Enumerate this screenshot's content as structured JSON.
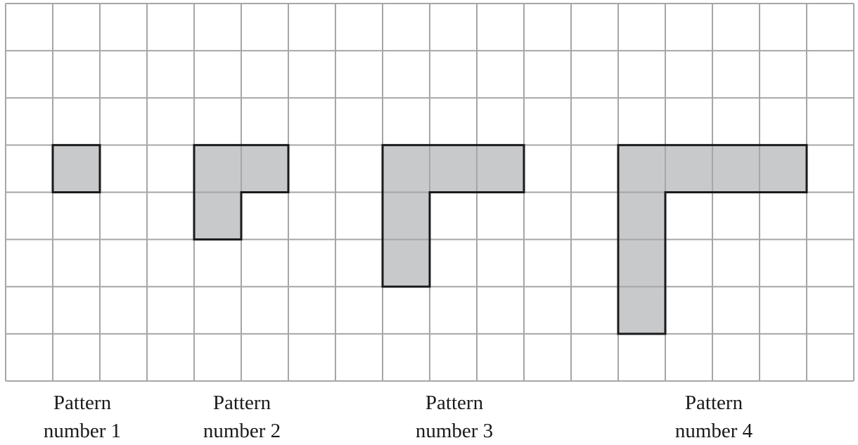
{
  "grid": {
    "columns": 18,
    "rows": 8,
    "line_color": "#a6a6a6",
    "fill_color": "#c8c9cb",
    "outline_color": "#1a1a1a"
  },
  "patterns": [
    {
      "id": "1",
      "caption_line1": "Pattern",
      "caption_line2": "number 1",
      "cells": [
        [
          1,
          3
        ]
      ]
    },
    {
      "id": "2",
      "caption_line1": "Pattern",
      "caption_line2": "number 2",
      "cells": [
        [
          4,
          3
        ],
        [
          5,
          3
        ],
        [
          4,
          4
        ]
      ]
    },
    {
      "id": "3",
      "caption_line1": "Pattern",
      "caption_line2": "number 3",
      "cells": [
        [
          8,
          3
        ],
        [
          9,
          3
        ],
        [
          10,
          3
        ],
        [
          8,
          4
        ],
        [
          8,
          5
        ]
      ]
    },
    {
      "id": "4",
      "caption_line1": "Pattern",
      "caption_line2": "number 4",
      "cells": [
        [
          13,
          3
        ],
        [
          14,
          3
        ],
        [
          15,
          3
        ],
        [
          16,
          3
        ],
        [
          13,
          4
        ],
        [
          13,
          5
        ],
        [
          13,
          6
        ]
      ]
    }
  ]
}
